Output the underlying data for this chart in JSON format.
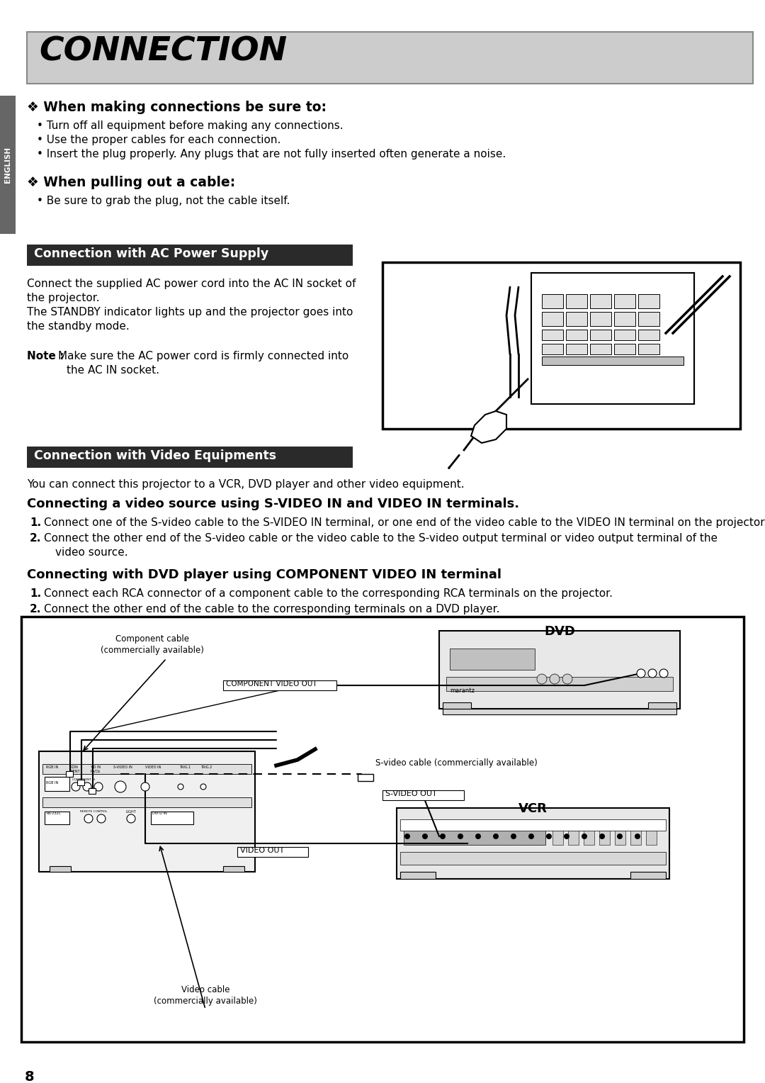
{
  "bg_color": "#ffffff",
  "sidebar_color": "#666666",
  "sidebar_text": "ENGLISH",
  "title_bg_color": "#cccccc",
  "title_border_color": "#888888",
  "title_text": "CONNECTION",
  "section_header_bg": "#2a2a2a",
  "section_header_fg": "#ffffff",
  "heading1": "❖ When making connections be sure to:",
  "bullets1": [
    "Turn off all equipment before making any connections.",
    "Use the proper cables for each connection.",
    "Insert the plug properly. Any plugs that are not fully inserted often generate a noise."
  ],
  "heading2": "❖ When pulling out a cable:",
  "bullets2": [
    "Be sure to grab the plug, not the cable itself."
  ],
  "section1_title": "Connection with AC Power Supply",
  "section1_para1": "Connect the supplied AC power cord into the AC IN socket of",
  "section1_para2": "the projector.",
  "section1_para3": "The STANDBY indicator lights up and the projector goes into",
  "section1_para4": "the standby mode.",
  "section1_note1": "Note : Make sure the AC power cord is firmly connected into",
  "section1_note2": "         the AC IN socket.",
  "section2_title": "Connection with Video Equipments",
  "section2_intro": "You can connect this projector to a VCR, DVD player and other video equipment.",
  "section2_subhead1": "Connecting a video source using S-VIDEO IN and VIDEO IN terminals.",
  "section2_step1a": "Connect one of the S-video cable to the S-VIDEO IN terminal, or one end of the video cable to the VIDEO IN terminal on the projector.",
  "section2_step1b": "Connect the other end of the S-video cable or the video cable to the S-video output terminal or video output terminal of the",
  "section2_step1b2": "video source.",
  "section2_subhead2": "Connecting with DVD player using COMPONENT VIDEO IN terminal",
  "section2_step2a": "Connect each RCA connector of a component cable to the corresponding RCA terminals on the projector.",
  "section2_step2b": "Connect the other end of the cable to the corresponding terminals on a DVD player.",
  "page_number": "8",
  "diagram_border_color": "#333333"
}
